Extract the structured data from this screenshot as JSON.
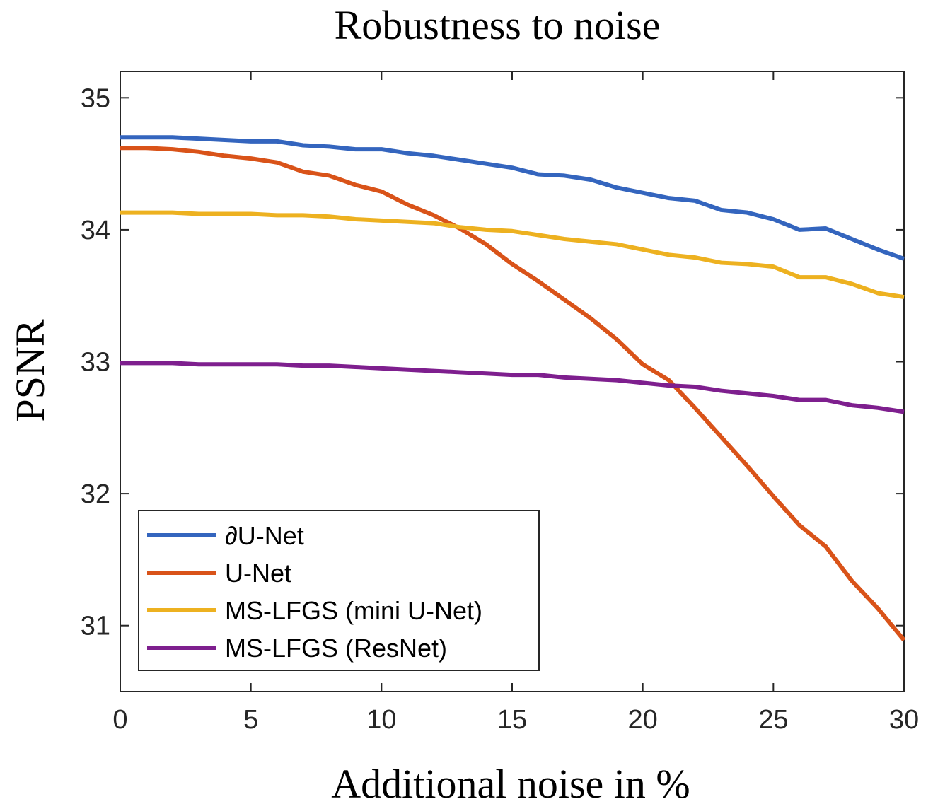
{
  "chart_data": {
    "type": "line",
    "title": "Robustness to noise",
    "xlabel": "Additional noise in %",
    "ylabel": "PSNR",
    "xlim": [
      0,
      30
    ],
    "ylim": [
      30.5,
      35.2
    ],
    "xticks": [
      0,
      5,
      10,
      15,
      20,
      25,
      30
    ],
    "yticks": [
      31,
      32,
      33,
      34,
      35
    ],
    "grid": false,
    "legend_position": "bottom-left",
    "x": [
      0,
      1,
      2,
      3,
      4,
      5,
      6,
      7,
      8,
      9,
      10,
      11,
      12,
      13,
      14,
      15,
      16,
      17,
      18,
      19,
      20,
      21,
      22,
      23,
      24,
      25,
      26,
      27,
      28,
      29,
      30
    ],
    "series": [
      {
        "name": "∂U-Net",
        "color": "#3465BE",
        "values": [
          34.7,
          34.7,
          34.7,
          34.69,
          34.68,
          34.67,
          34.67,
          34.64,
          34.63,
          34.61,
          34.61,
          34.58,
          34.56,
          34.53,
          34.5,
          34.47,
          34.42,
          34.41,
          34.38,
          34.32,
          34.28,
          34.24,
          34.22,
          34.15,
          34.13,
          34.08,
          34.0,
          34.01,
          33.93,
          33.85,
          33.78
        ]
      },
      {
        "name": "U-Net",
        "color": "#D95319",
        "values": [
          34.62,
          34.62,
          34.61,
          34.59,
          34.56,
          34.54,
          34.51,
          34.44,
          34.41,
          34.34,
          34.29,
          34.19,
          34.11,
          34.01,
          33.89,
          33.74,
          33.61,
          33.47,
          33.33,
          33.17,
          32.98,
          32.86,
          32.65,
          32.43,
          32.21,
          31.98,
          31.76,
          31.6,
          31.34,
          31.13,
          30.89
        ]
      },
      {
        "name": "MS-LFGS (mini U-Net)",
        "color": "#EDB120",
        "values": [
          34.13,
          34.13,
          34.13,
          34.12,
          34.12,
          34.12,
          34.11,
          34.11,
          34.1,
          34.08,
          34.07,
          34.06,
          34.05,
          34.02,
          34.0,
          33.99,
          33.96,
          33.93,
          33.91,
          33.89,
          33.85,
          33.81,
          33.79,
          33.75,
          33.74,
          33.72,
          33.64,
          33.64,
          33.59,
          33.52,
          33.49
        ]
      },
      {
        "name": "MS-LFGS (ResNet)",
        "color": "#7E1F8E",
        "values": [
          32.99,
          32.99,
          32.99,
          32.98,
          32.98,
          32.98,
          32.98,
          32.97,
          32.97,
          32.96,
          32.95,
          32.94,
          32.93,
          32.92,
          32.91,
          32.9,
          32.9,
          32.88,
          32.87,
          32.86,
          32.84,
          32.82,
          32.81,
          32.78,
          32.76,
          32.74,
          32.71,
          32.71,
          32.67,
          32.65,
          32.62
        ]
      }
    ]
  }
}
